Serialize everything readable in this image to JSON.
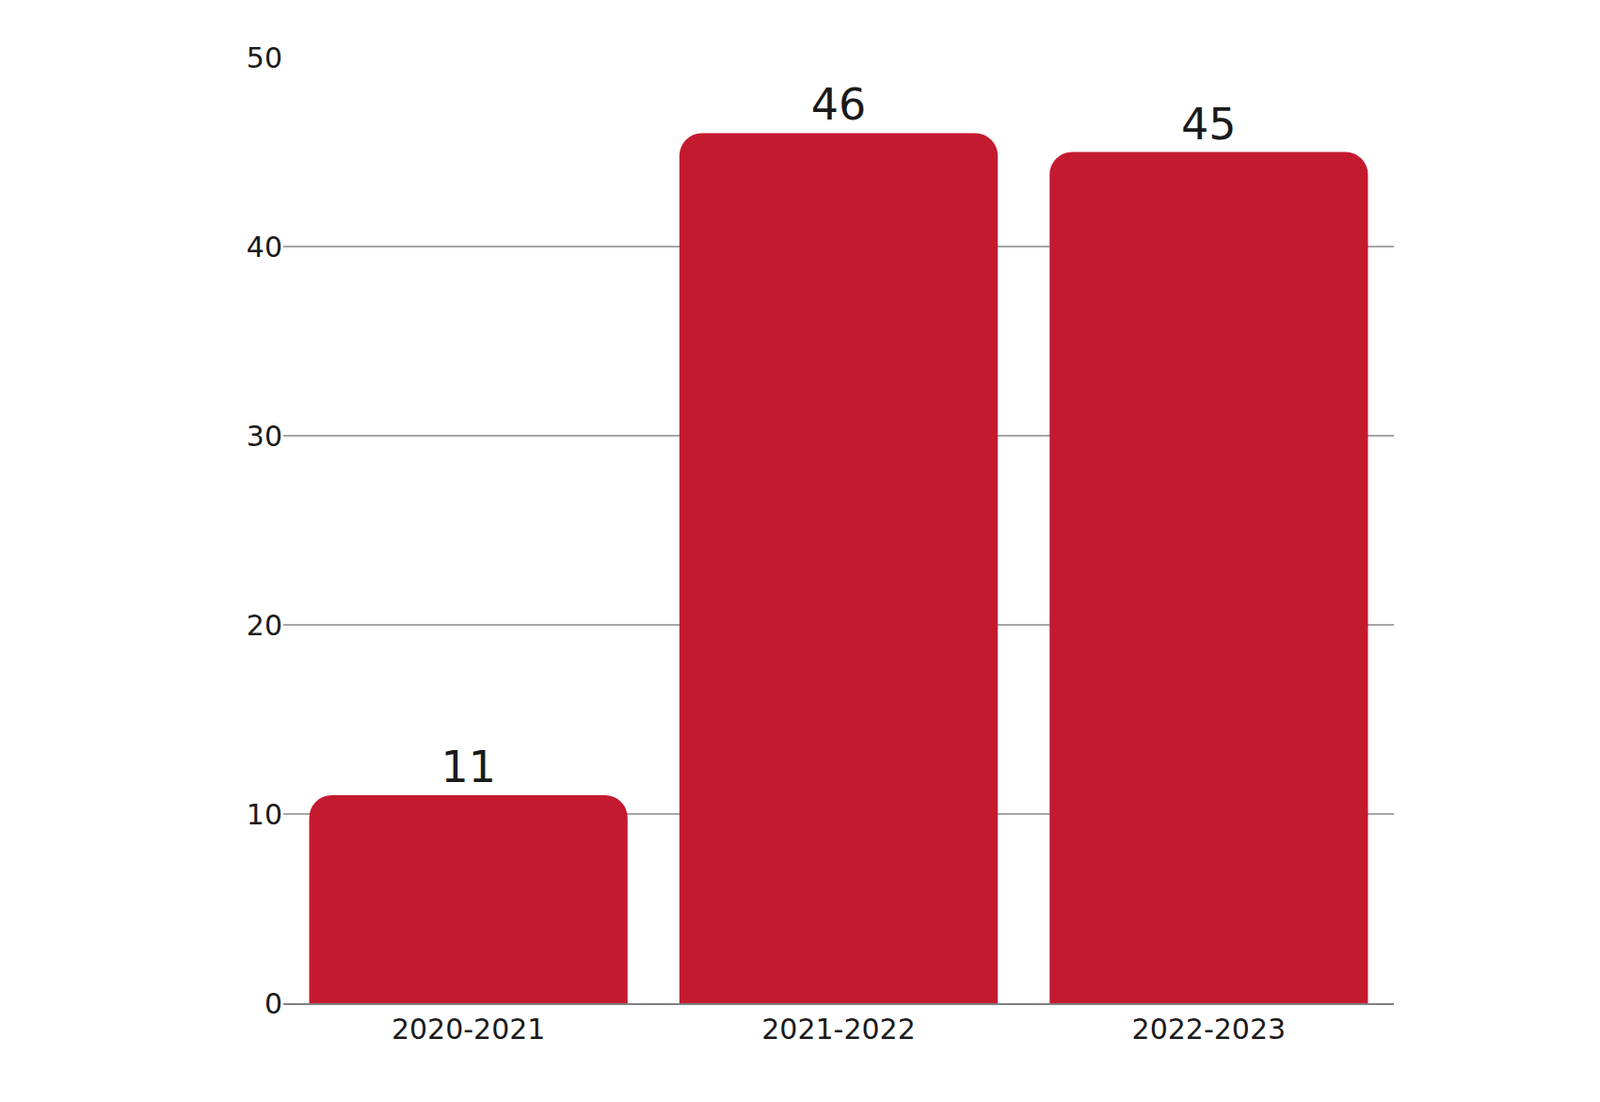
{
  "chart_data": {
    "type": "bar",
    "categories": [
      "2020-2021",
      "2021-2022",
      "2022-2023"
    ],
    "values": [
      11,
      46,
      45
    ],
    "color": "#c41a2f",
    "ylim": [
      0,
      50
    ],
    "yticks": [
      0,
      10,
      20,
      30,
      40,
      50
    ],
    "grid": true,
    "data_labels": true
  }
}
